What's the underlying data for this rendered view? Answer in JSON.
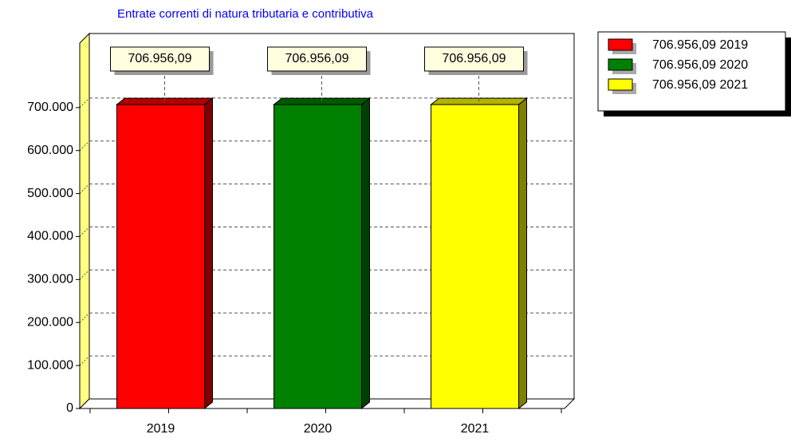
{
  "chart_data": {
    "type": "bar3d",
    "title": "Entrate correnti di natura tributaria e contributiva",
    "categories": [
      "2019",
      "2020",
      "2021"
    ],
    "values": [
      706956.09,
      706956.09,
      706956.09
    ],
    "value_labels": [
      "706.956,09",
      "706.956,09",
      "706.956,09"
    ],
    "colors": [
      "#ff0000",
      "#008000",
      "#ffff00"
    ],
    "legend": [
      "706.956,09 2019",
      "706.956,09 2020",
      "706.956,09 2021"
    ],
    "ylim": [
      0,
      850000
    ],
    "yticks": [
      0,
      {
        "value": 100000,
        "label": "100.000"
      },
      {
        "value": 200000,
        "label": "200.000"
      },
      {
        "value": 300000,
        "label": "300.000"
      },
      {
        "value": 400000,
        "label": "400.000"
      },
      {
        "value": 500000,
        "label": "500.000"
      },
      {
        "value": 600000,
        "label": "600.000"
      },
      {
        "value": 700000,
        "label": "700.000"
      }
    ],
    "grid": true
  }
}
